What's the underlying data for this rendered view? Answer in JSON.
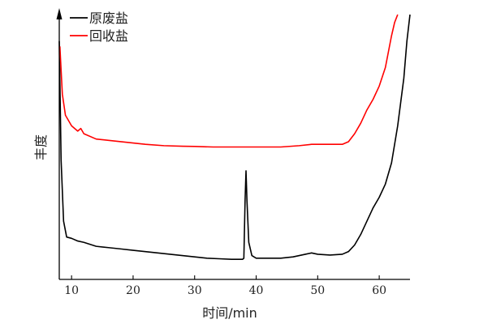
{
  "chart_data": {
    "type": "line",
    "xlabel": "时间/min",
    "ylabel": "丰度",
    "xlim": [
      8,
      65
    ],
    "ylim": [
      0,
      100
    ],
    "x_ticks": [
      10,
      20,
      30,
      40,
      50,
      60
    ],
    "grid": false,
    "legend_position": "top-left",
    "series": [
      {
        "name": "原废盐",
        "color": "#000000",
        "points": [
          [
            8.0,
            90
          ],
          [
            8.3,
            45
          ],
          [
            8.7,
            22
          ],
          [
            9.2,
            16
          ],
          [
            10.0,
            15.5
          ],
          [
            11.0,
            14.5
          ],
          [
            12.0,
            14
          ],
          [
            14.0,
            12.5
          ],
          [
            16.0,
            12
          ],
          [
            18.0,
            11.5
          ],
          [
            20.0,
            11
          ],
          [
            22.0,
            10.5
          ],
          [
            24.0,
            10
          ],
          [
            26.0,
            9.5
          ],
          [
            28.0,
            9
          ],
          [
            30.0,
            8.5
          ],
          [
            32.0,
            8
          ],
          [
            34.0,
            7.8
          ],
          [
            36.0,
            7.6
          ],
          [
            37.8,
            7.6
          ],
          [
            38.0,
            8
          ],
          [
            38.2,
            30
          ],
          [
            38.35,
            41
          ],
          [
            38.5,
            30
          ],
          [
            38.8,
            14
          ],
          [
            39.3,
            9
          ],
          [
            40.0,
            8
          ],
          [
            42.0,
            8
          ],
          [
            44.0,
            8
          ],
          [
            46.0,
            8.5
          ],
          [
            48.0,
            9.5
          ],
          [
            49.0,
            10
          ],
          [
            50.0,
            9.5
          ],
          [
            52.0,
            9.2
          ],
          [
            54.0,
            9.5
          ],
          [
            55.0,
            10.5
          ],
          [
            56.0,
            13
          ],
          [
            57.0,
            17
          ],
          [
            58.0,
            22
          ],
          [
            59.0,
            27
          ],
          [
            60.0,
            31
          ],
          [
            61.0,
            36
          ],
          [
            62.0,
            44
          ],
          [
            63.0,
            58
          ],
          [
            64.0,
            76
          ],
          [
            64.5,
            90
          ],
          [
            65.0,
            100
          ]
        ]
      },
      {
        "name": "回收盐",
        "color": "#ff0000",
        "points": [
          [
            8.1,
            88
          ],
          [
            8.5,
            70
          ],
          [
            9.0,
            62
          ],
          [
            10.0,
            58
          ],
          [
            11.0,
            56
          ],
          [
            11.5,
            57
          ],
          [
            12.0,
            55
          ],
          [
            14.0,
            53
          ],
          [
            16.0,
            52.5
          ],
          [
            18.0,
            52
          ],
          [
            20.0,
            51.5
          ],
          [
            22.0,
            51
          ],
          [
            25.0,
            50.5
          ],
          [
            28.0,
            50.3
          ],
          [
            30.0,
            50.2
          ],
          [
            33.0,
            50
          ],
          [
            36.0,
            50
          ],
          [
            40.0,
            50
          ],
          [
            44.0,
            50
          ],
          [
            47.0,
            50.5
          ],
          [
            49.0,
            51
          ],
          [
            52.0,
            51
          ],
          [
            54.0,
            51
          ],
          [
            55.0,
            52
          ],
          [
            56.0,
            55
          ],
          [
            57.0,
            59
          ],
          [
            58.0,
            64
          ],
          [
            59.0,
            68
          ],
          [
            60.0,
            73
          ],
          [
            61.0,
            80
          ],
          [
            61.5,
            86
          ],
          [
            62.0,
            92
          ],
          [
            62.5,
            97
          ],
          [
            63.0,
            100
          ]
        ]
      }
    ]
  }
}
